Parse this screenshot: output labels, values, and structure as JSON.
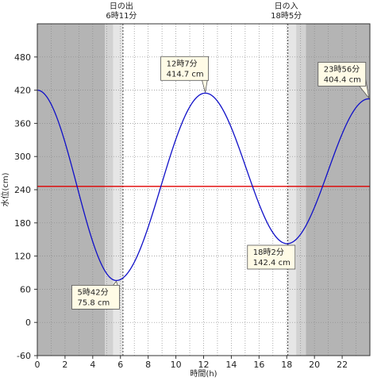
{
  "chart_data": {
    "type": "line",
    "xlabel": "時間(h)",
    "ylabel": "水位(cm)",
    "xlim": [
      0,
      24
    ],
    "ylim": [
      -60,
      540
    ],
    "x_ticks": [
      0,
      2,
      4,
      6,
      8,
      10,
      12,
      14,
      16,
      18,
      20,
      22
    ],
    "y_ticks": [
      -60,
      0,
      60,
      120,
      180,
      240,
      300,
      360,
      420,
      480
    ],
    "grid": true,
    "reference_line": {
      "value": 246,
      "color": "#e00000"
    },
    "line_color": "#1010c8",
    "shading": {
      "night_color": "#b4b4b4",
      "twilight_colors": [
        "#d2d2d2",
        "#e6e6e6"
      ],
      "sunrise_hour": 6.18,
      "sunset_hour": 18.08
    },
    "sun_labels": [
      {
        "title": "日の出",
        "time": "6時11分",
        "hour": 6.18
      },
      {
        "title": "日の入",
        "time": "18時5分",
        "hour": 18.08
      }
    ],
    "tide_events": [
      {
        "time_label": "5時42分",
        "value_label": "75.8 cm",
        "hour": 5.7,
        "value": 75.8,
        "kind": "low"
      },
      {
        "time_label": "12時7分",
        "value_label": "414.7 cm",
        "hour": 12.12,
        "value": 414.7,
        "kind": "high"
      },
      {
        "time_label": "18時2分",
        "value_label": "142.4 cm",
        "hour": 18.03,
        "value": 142.4,
        "kind": "low"
      },
      {
        "time_label": "23時56分",
        "value_label": "404.4 cm",
        "hour": 23.93,
        "value": 404.4,
        "kind": "high"
      }
    ],
    "series": [
      {
        "points": [
          [
            0,
            420
          ],
          [
            5.7,
            75.8
          ],
          [
            12.12,
            414.7
          ],
          [
            18.03,
            142.4
          ],
          [
            23.93,
            404.4
          ],
          [
            24,
            404.3
          ]
        ]
      }
    ]
  }
}
